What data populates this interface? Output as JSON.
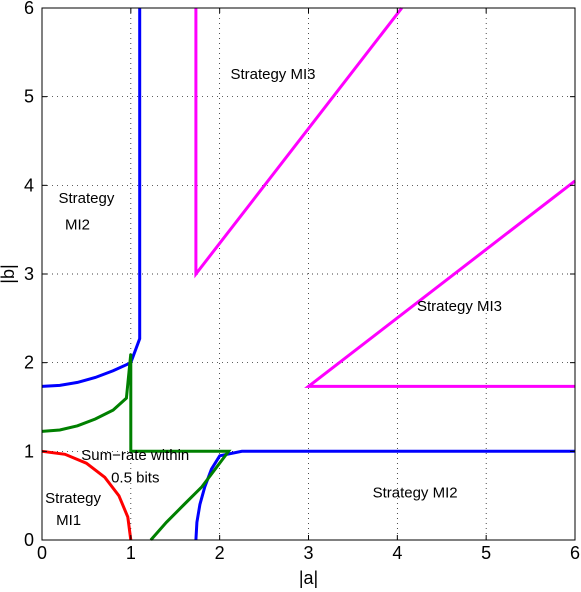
{
  "chart_data": {
    "type": "line",
    "xlabel": "|a|",
    "ylabel": "|b|",
    "xlim": [
      0,
      6
    ],
    "ylim": [
      0,
      6
    ],
    "x_ticks": [
      0,
      1,
      2,
      3,
      4,
      5,
      6
    ],
    "y_ticks": [
      0,
      1,
      2,
      3,
      4,
      5,
      6
    ],
    "grid": "dotted",
    "series": [
      {
        "color": "#ff0000",
        "points": [
          [
            0,
            1
          ],
          [
            0.259,
            0.966
          ],
          [
            0.5,
            0.866
          ],
          [
            0.707,
            0.707
          ],
          [
            0.866,
            0.5
          ],
          [
            0.966,
            0.259
          ],
          [
            1,
            0
          ]
        ]
      },
      {
        "color": "#0000ff",
        "points": [
          [
            0,
            1.732
          ],
          [
            0.2,
            1.744
          ],
          [
            0.4,
            1.778
          ],
          [
            0.6,
            1.833
          ],
          [
            0.8,
            1.908
          ],
          [
            1,
            2.0
          ],
          [
            1.1,
            2.27
          ],
          [
            1.1,
            6
          ]
        ]
      },
      {
        "color": "#0000ff",
        "points": [
          [
            1.732,
            0
          ],
          [
            1.744,
            0.2
          ],
          [
            1.778,
            0.4
          ],
          [
            1.833,
            0.6
          ],
          [
            1.908,
            0.8
          ],
          [
            2.0,
            0.95
          ],
          [
            2.25,
            1.0
          ],
          [
            6,
            1.0
          ]
        ]
      },
      {
        "color": "#008000",
        "points": [
          [
            0,
            1.225
          ],
          [
            0.2,
            1.241
          ],
          [
            0.4,
            1.288
          ],
          [
            0.6,
            1.365
          ],
          [
            0.8,
            1.465
          ],
          [
            0.95,
            1.6
          ],
          [
            1.0,
            2.1
          ],
          [
            1.0,
            1.0
          ],
          [
            2.1,
            1.0
          ],
          [
            1.95,
            0.8
          ],
          [
            1.8,
            0.6
          ],
          [
            1.6,
            0.4
          ],
          [
            1.4,
            0.2
          ],
          [
            1.225,
            0
          ]
        ]
      },
      {
        "color": "#ff00ff",
        "points": [
          [
            1.732,
            6
          ],
          [
            1.732,
            3.0
          ],
          [
            4.05,
            6
          ]
        ]
      },
      {
        "color": "#ff00ff",
        "points": [
          [
            6,
            4.05
          ],
          [
            3.0,
            1.732
          ],
          [
            6,
            1.732
          ]
        ]
      }
    ],
    "annotations": [
      {
        "text": "Strategy MI3",
        "x": 2.6,
        "y": 5.2
      },
      {
        "text": "Strategy",
        "x": 0.5,
        "y": 3.8
      },
      {
        "text": "MI2",
        "x": 0.4,
        "y": 3.5
      },
      {
        "text": "Strategy MI3",
        "x": 4.7,
        "y": 2.58
      },
      {
        "text": "Sum−rate within",
        "x": 1.05,
        "y": 0.9
      },
      {
        "text": "0.5 bits",
        "x": 1.05,
        "y": 0.65
      },
      {
        "text": "Strategy",
        "x": 0.35,
        "y": 0.42
      },
      {
        "text": "MI1",
        "x": 0.3,
        "y": 0.17
      },
      {
        "text": "Strategy MI2",
        "x": 4.2,
        "y": 0.48
      }
    ]
  }
}
